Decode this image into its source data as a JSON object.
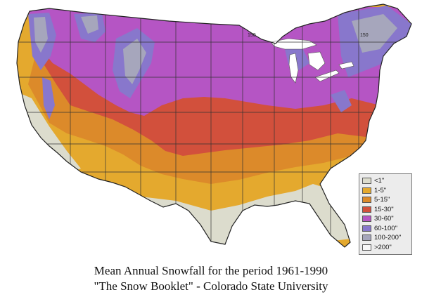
{
  "legend": {
    "items": [
      {
        "label": "<1\"",
        "color": "#dcdccd"
      },
      {
        "label": "1-5\"",
        "color": "#e4a92e"
      },
      {
        "label": "5-15\"",
        "color": "#dc8a2a"
      },
      {
        "label": "15-30\"",
        "color": "#d2503c"
      },
      {
        "label": "30-60\"",
        "color": "#b555c4"
      },
      {
        "label": "60-100\"",
        "color": "#8877cc"
      },
      {
        "label": "100-200\"",
        "color": "#a6a6bc"
      },
      {
        "label": ">200\"",
        "color": "#f7f7f7"
      }
    ]
  },
  "contour_labels": [
    "150",
    "150"
  ],
  "caption": {
    "line1": "Mean Annual Snowfall for the period 1961-1990",
    "line2": "\"The Snow Booklet\" - Colorado State University"
  }
}
